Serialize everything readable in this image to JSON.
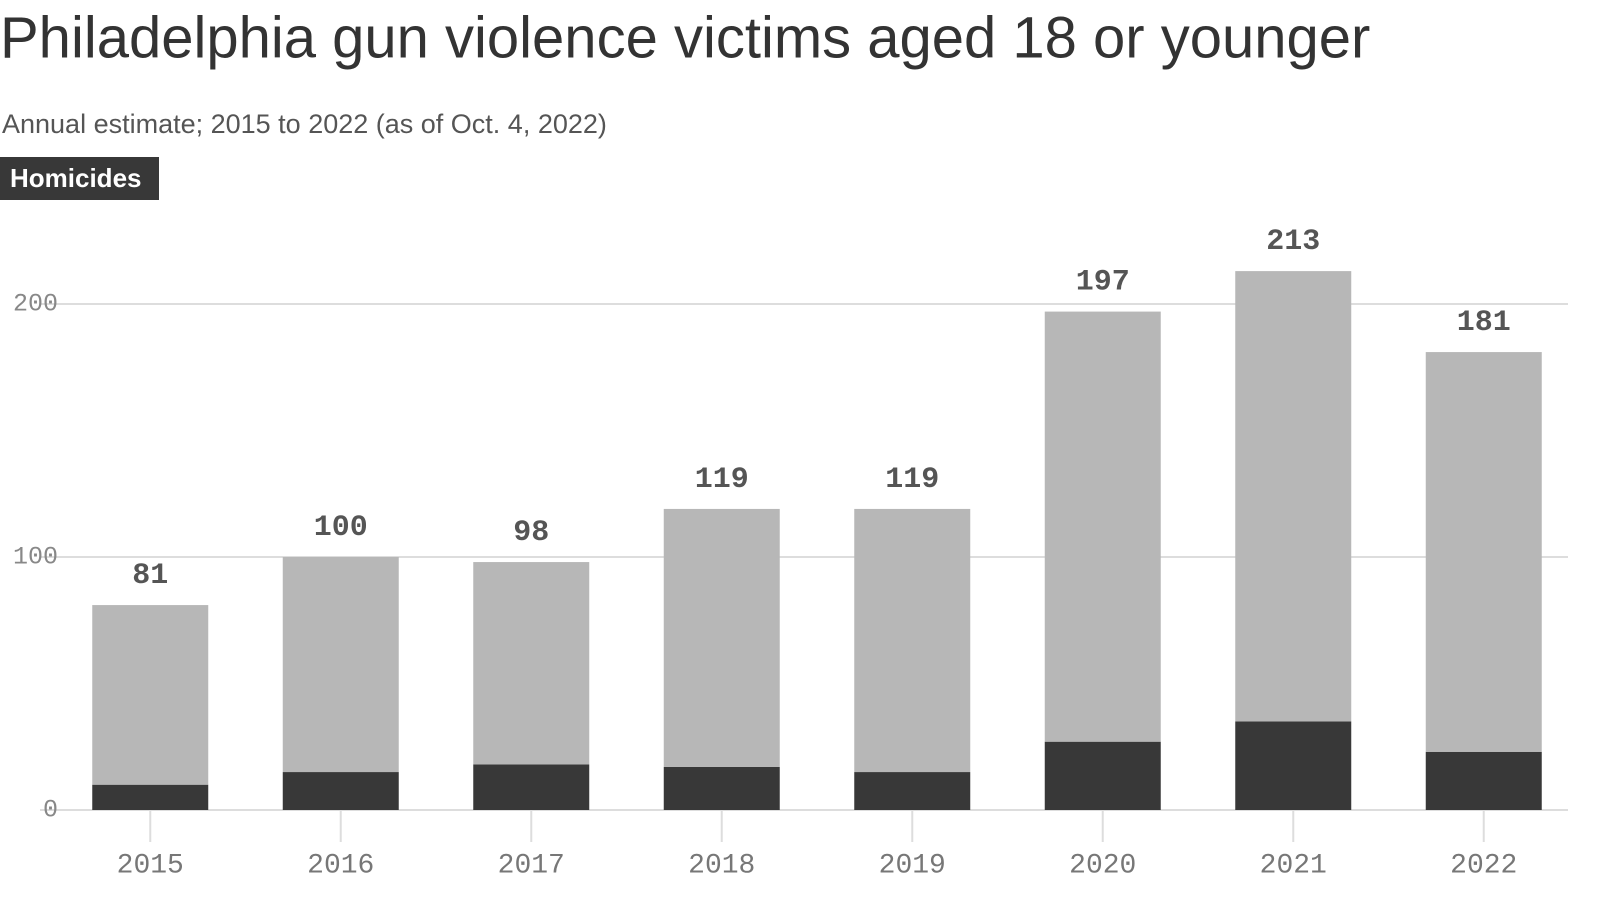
{
  "chart_data": {
    "type": "stacked-bar",
    "title": "Philadelphia gun violence victims aged 18 or younger",
    "subtitle": "Annual estimate; 2015 to 2022 (as of Oct. 4, 2022)",
    "categories": [
      "2015",
      "2016",
      "2017",
      "2018",
      "2019",
      "2020",
      "2021",
      "2022"
    ],
    "series": [
      {
        "name": "Homicides",
        "color": "#383838",
        "values": [
          10,
          15,
          18,
          17,
          15,
          27,
          35,
          23
        ]
      },
      {
        "color": "#b7b7b7",
        "values": [
          71,
          85,
          80,
          102,
          104,
          170,
          178,
          158
        ]
      }
    ],
    "totals": [
      81,
      100,
      98,
      119,
      119,
      197,
      213,
      181
    ],
    "ylim": [
      0,
      220
    ],
    "yticks": [
      0,
      100,
      200
    ],
    "grid": true
  }
}
